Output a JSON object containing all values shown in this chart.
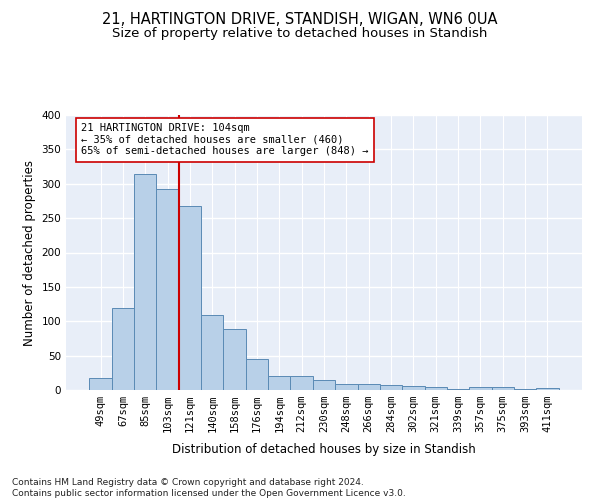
{
  "title_line1": "21, HARTINGTON DRIVE, STANDISH, WIGAN, WN6 0UA",
  "title_line2": "Size of property relative to detached houses in Standish",
  "xlabel": "Distribution of detached houses by size in Standish",
  "ylabel": "Number of detached properties",
  "categories": [
    "49sqm",
    "67sqm",
    "85sqm",
    "103sqm",
    "121sqm",
    "140sqm",
    "158sqm",
    "176sqm",
    "194sqm",
    "212sqm",
    "230sqm",
    "248sqm",
    "266sqm",
    "284sqm",
    "302sqm",
    "321sqm",
    "339sqm",
    "357sqm",
    "375sqm",
    "393sqm",
    "411sqm"
  ],
  "values": [
    18,
    120,
    314,
    293,
    267,
    109,
    89,
    45,
    20,
    20,
    15,
    9,
    9,
    7,
    6,
    4,
    1,
    5,
    5,
    1,
    3
  ],
  "bar_color": "#b8d0e8",
  "bar_edge_color": "#5a8ab5",
  "background_color": "#e8eef8",
  "grid_color": "#ffffff",
  "ref_line_index": 3,
  "ref_line_color": "#cc0000",
  "annotation_text": "21 HARTINGTON DRIVE: 104sqm\n← 35% of detached houses are smaller (460)\n65% of semi-detached houses are larger (848) →",
  "annotation_box_color": "#ffffff",
  "annotation_box_edge": "#cc0000",
  "ylim": [
    0,
    400
  ],
  "yticks": [
    0,
    50,
    100,
    150,
    200,
    250,
    300,
    350,
    400
  ],
  "footer_text": "Contains HM Land Registry data © Crown copyright and database right 2024.\nContains public sector information licensed under the Open Government Licence v3.0.",
  "title_fontsize": 10.5,
  "subtitle_fontsize": 9.5,
  "axis_label_fontsize": 8.5,
  "tick_fontsize": 7.5,
  "annotation_fontsize": 7.5,
  "footer_fontsize": 6.5
}
